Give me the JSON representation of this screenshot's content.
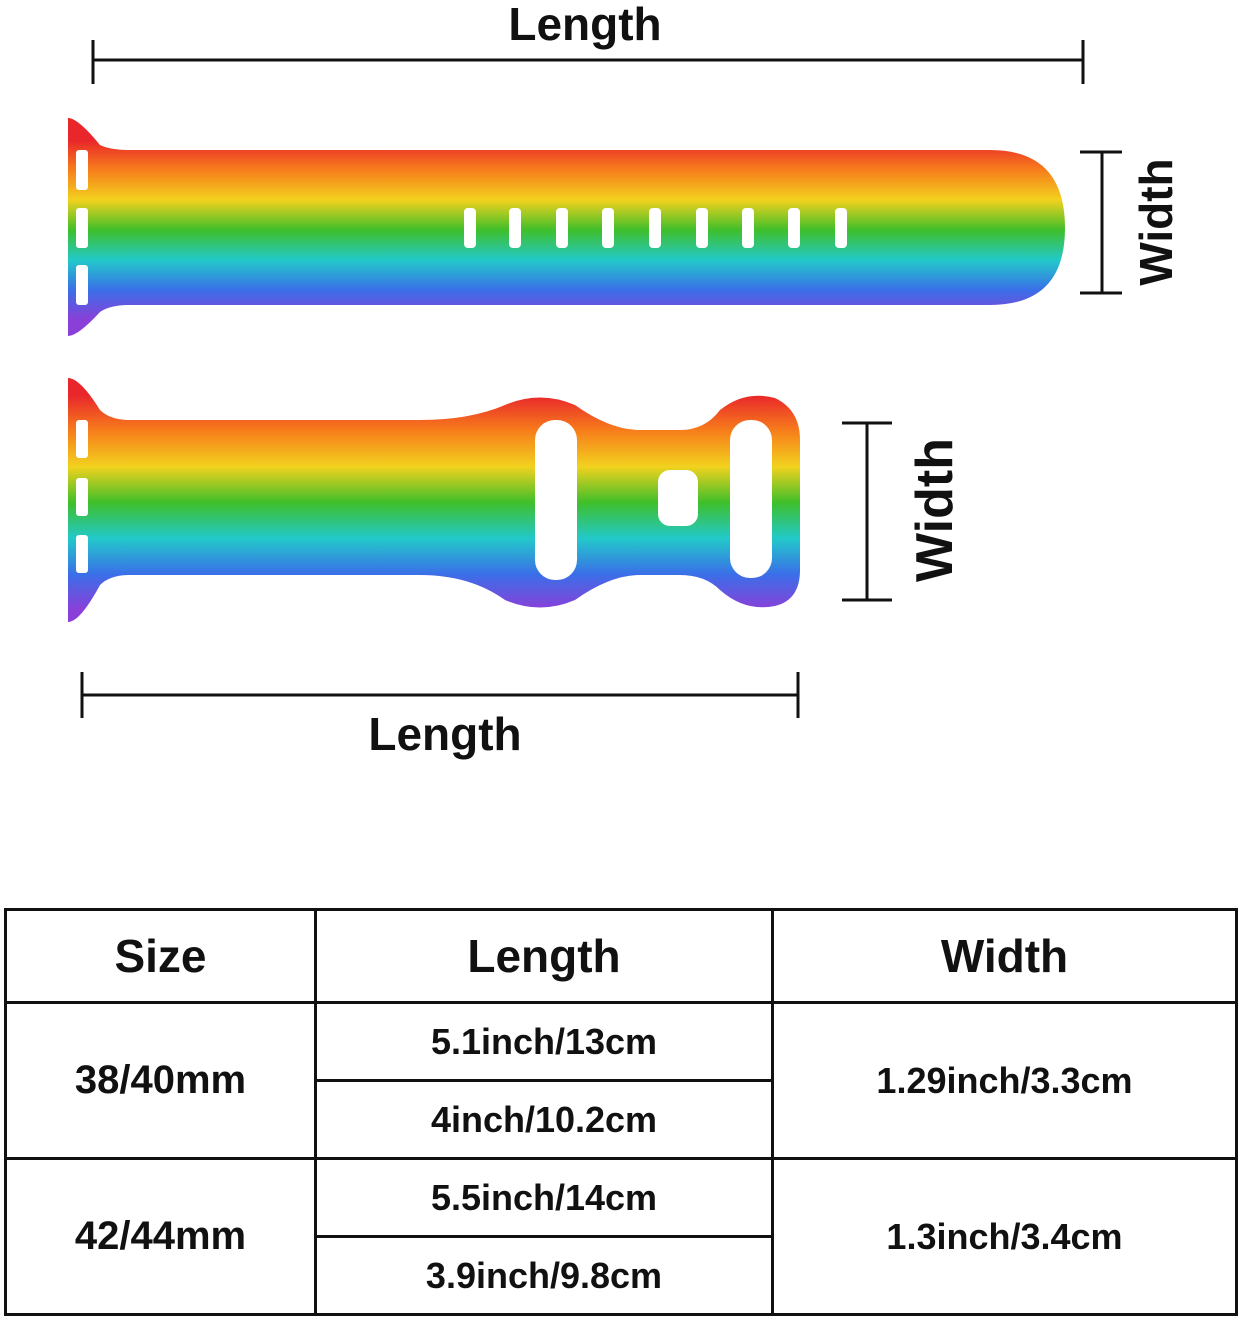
{
  "diagram": {
    "top_length_label": "Length",
    "top_width_label": "Width",
    "bottom_length_label": "Length",
    "bottom_width_label": "Width",
    "strap_colors": [
      "#e8262b",
      "#f77e1b",
      "#f2d21e",
      "#3fbf2a",
      "#22c9c9",
      "#3a6fe8",
      "#8a3fd8"
    ]
  },
  "table": {
    "headers": [
      "Size",
      "Length",
      "Width"
    ],
    "rows": [
      {
        "size": "38/40mm",
        "lengths": [
          "5.1inch/13cm",
          "4inch/10.2cm"
        ],
        "width": "1.29inch/3.3cm"
      },
      {
        "size": "42/44mm",
        "lengths": [
          "5.5inch/14cm",
          "3.9inch/9.8cm"
        ],
        "width": "1.3inch/3.4cm"
      }
    ]
  }
}
